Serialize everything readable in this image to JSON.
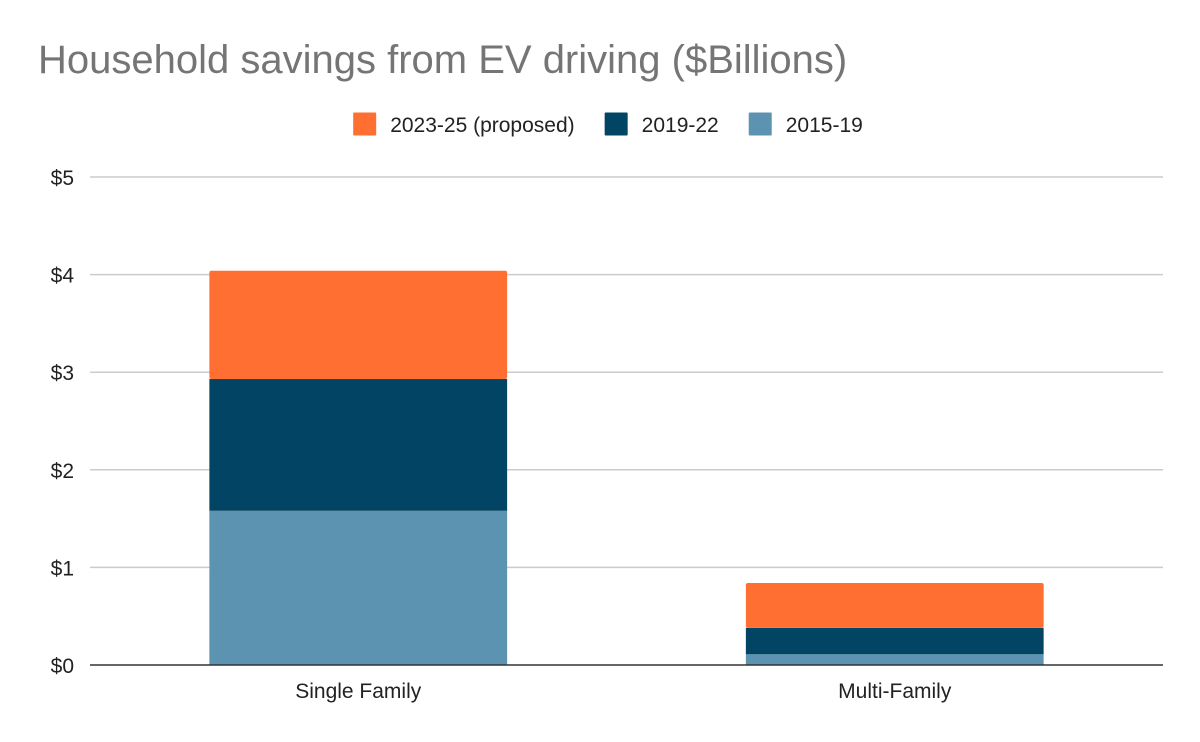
{
  "chart_data": {
    "type": "bar",
    "stacked": true,
    "title": "Household savings from EV driving ($Billions)",
    "xlabel": "",
    "ylabel": "",
    "categories": [
      "Single Family",
      "Multi-Family"
    ],
    "series": [
      {
        "name": "2015-19",
        "values": [
          1.58,
          0.11
        ],
        "color": "#5b93b0"
      },
      {
        "name": "2019-22",
        "values": [
          1.35,
          0.27
        ],
        "color": "#024463"
      },
      {
        "name": "2023-25 (proposed)",
        "values": [
          1.11,
          0.46
        ],
        "color": "#ff6f31"
      }
    ],
    "legend_order": [
      "2023-25 (proposed)",
      "2019-22",
      "2015-19"
    ],
    "legend_position": "top",
    "ylim": [
      0,
      5
    ],
    "yticks": [
      0,
      1,
      2,
      3,
      4,
      5
    ],
    "ytick_labels": [
      "$0",
      "$1",
      "$2",
      "$3",
      "$4",
      "$5"
    ],
    "grid": true,
    "gridline_color": "#cccccc",
    "axis_color": "#333333",
    "title_color": "#757575"
  }
}
